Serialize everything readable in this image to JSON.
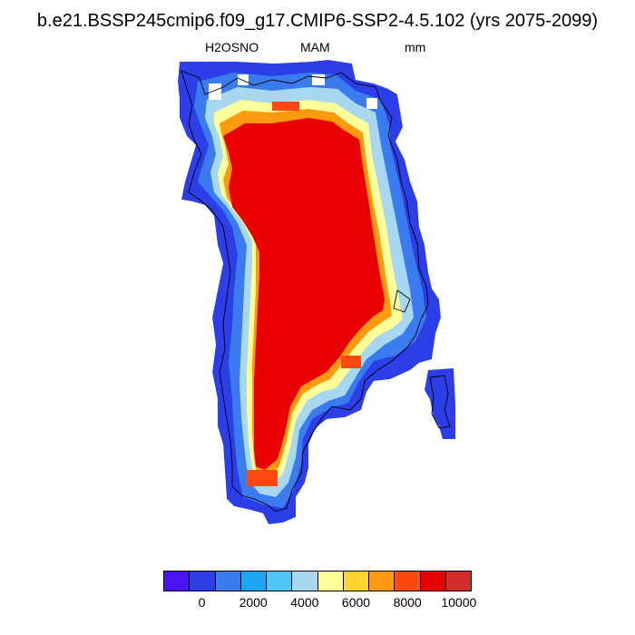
{
  "title": "b.e21.BSSP245cmip6.f09_g17.CMIP6-SSP2-4.5.102 (yrs 2075-2099)",
  "subtitle_left": "H2OSNO",
  "subtitle_center": "MAM",
  "subtitle_right": "mm",
  "map": {
    "region": "Greenland",
    "variable": "H2OSNO",
    "season": "MAM",
    "units": "mm",
    "interior_value_class": "high (red)",
    "coast_gradient": "values decrease from red inland through orange/yellow to blue at the coast"
  },
  "colorbar": {
    "colors": [
      "#4a14f5",
      "#2b3ee8",
      "#3a7bf0",
      "#1ea6f5",
      "#4fc6f7",
      "#a8d8f0",
      "#fefe9a",
      "#fed430",
      "#fe9a10",
      "#fe4a10",
      "#e90000",
      "#d22d2d"
    ],
    "tick_labels": [
      "0",
      "2000",
      "4000",
      "6000",
      "8000",
      "10000"
    ]
  }
}
